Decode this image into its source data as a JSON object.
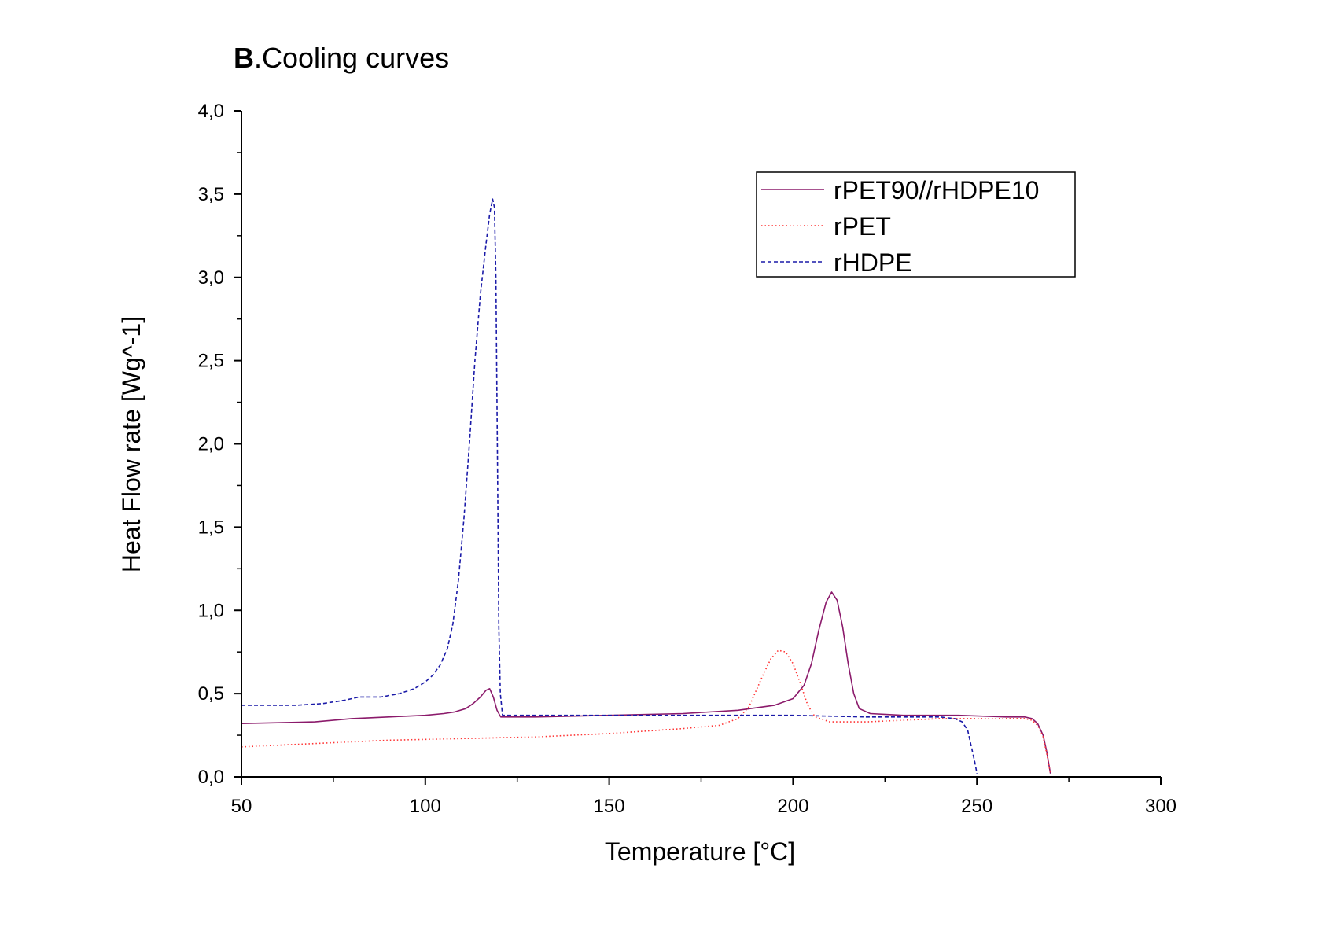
{
  "chart_data": {
    "type": "line",
    "title_prefix": "B",
    "title_rest": ".Cooling curves",
    "xlabel": "Temperature [°C]",
    "ylabel": "Heat Flow rate [Wg^-1]",
    "xlim": [
      50,
      300
    ],
    "ylim": [
      0,
      4
    ],
    "x_ticks": [
      50,
      100,
      150,
      200,
      250,
      300
    ],
    "x_tick_labels": [
      "50",
      "100",
      "150",
      "200",
      "250",
      "300"
    ],
    "y_ticks": [
      0,
      0.5,
      1,
      1.5,
      2,
      2.5,
      3,
      3.5,
      4
    ],
    "y_tick_labels": [
      "0,0",
      "0,5",
      "1,0",
      "1,5",
      "2,0",
      "2,5",
      "3,0",
      "3,5",
      "4,0"
    ],
    "legend_position": "top-right",
    "series": [
      {
        "name": "rPET90//rHDPE10",
        "color": "#8b1a6b",
        "dash": "solid",
        "points": [
          [
            50,
            0.32
          ],
          [
            70,
            0.33
          ],
          [
            80,
            0.35
          ],
          [
            90,
            0.36
          ],
          [
            100,
            0.37
          ],
          [
            105,
            0.38
          ],
          [
            108,
            0.39
          ],
          [
            111,
            0.41
          ],
          [
            113,
            0.44
          ],
          [
            115,
            0.48
          ],
          [
            116.5,
            0.52
          ],
          [
            117.5,
            0.53
          ],
          [
            118.5,
            0.48
          ],
          [
            119.5,
            0.4
          ],
          [
            120.5,
            0.36
          ],
          [
            130,
            0.36
          ],
          [
            150,
            0.37
          ],
          [
            170,
            0.38
          ],
          [
            185,
            0.4
          ],
          [
            195,
            0.43
          ],
          [
            200,
            0.47
          ],
          [
            203,
            0.55
          ],
          [
            205,
            0.68
          ],
          [
            207,
            0.88
          ],
          [
            209,
            1.05
          ],
          [
            210.5,
            1.11
          ],
          [
            212,
            1.06
          ],
          [
            213.5,
            0.9
          ],
          [
            215,
            0.68
          ],
          [
            216.5,
            0.5
          ],
          [
            218,
            0.41
          ],
          [
            221,
            0.38
          ],
          [
            230,
            0.37
          ],
          [
            245,
            0.37
          ],
          [
            258,
            0.36
          ],
          [
            263,
            0.36
          ],
          [
            265,
            0.35
          ],
          [
            266.5,
            0.32
          ],
          [
            268,
            0.25
          ],
          [
            269,
            0.15
          ],
          [
            270,
            0.02
          ]
        ]
      },
      {
        "name": "rPET",
        "color": "#ff3333",
        "dash": "dotted",
        "points": [
          [
            50,
            0.18
          ],
          [
            70,
            0.2
          ],
          [
            90,
            0.22
          ],
          [
            110,
            0.23
          ],
          [
            130,
            0.24
          ],
          [
            150,
            0.26
          ],
          [
            170,
            0.29
          ],
          [
            180,
            0.31
          ],
          [
            185,
            0.35
          ],
          [
            188,
            0.42
          ],
          [
            190,
            0.52
          ],
          [
            192,
            0.62
          ],
          [
            194,
            0.71
          ],
          [
            196,
            0.76
          ],
          [
            198,
            0.75
          ],
          [
            200,
            0.68
          ],
          [
            202,
            0.56
          ],
          [
            204,
            0.43
          ],
          [
            206,
            0.36
          ],
          [
            210,
            0.33
          ],
          [
            220,
            0.33
          ],
          [
            230,
            0.34
          ],
          [
            240,
            0.35
          ],
          [
            250,
            0.35
          ],
          [
            260,
            0.35
          ],
          [
            263,
            0.35
          ],
          [
            265,
            0.34
          ],
          [
            266.5,
            0.31
          ],
          [
            268,
            0.24
          ],
          [
            269,
            0.14
          ],
          [
            270,
            0.02
          ]
        ]
      },
      {
        "name": "rHDPE",
        "color": "#1a1aa8",
        "dash": "dashed",
        "points": [
          [
            50,
            0.43
          ],
          [
            65,
            0.43
          ],
          [
            72,
            0.44
          ],
          [
            78,
            0.46
          ],
          [
            82,
            0.48
          ],
          [
            88,
            0.48
          ],
          [
            93,
            0.5
          ],
          [
            97,
            0.53
          ],
          [
            100,
            0.57
          ],
          [
            102,
            0.61
          ],
          [
            104,
            0.67
          ],
          [
            106,
            0.77
          ],
          [
            107.5,
            0.92
          ],
          [
            109,
            1.18
          ],
          [
            110.5,
            1.55
          ],
          [
            112,
            2.0
          ],
          [
            113.5,
            2.5
          ],
          [
            115,
            2.9
          ],
          [
            116.5,
            3.2
          ],
          [
            117.5,
            3.38
          ],
          [
            118.3,
            3.47
          ],
          [
            118.8,
            3.42
          ],
          [
            119.2,
            3.0
          ],
          [
            119.6,
            2.0
          ],
          [
            120,
            0.9
          ],
          [
            120.4,
            0.5
          ],
          [
            121,
            0.37
          ],
          [
            140,
            0.37
          ],
          [
            160,
            0.37
          ],
          [
            180,
            0.37
          ],
          [
            200,
            0.37
          ],
          [
            220,
            0.36
          ],
          [
            240,
            0.36
          ],
          [
            244,
            0.35
          ],
          [
            246,
            0.33
          ],
          [
            247.5,
            0.28
          ],
          [
            248.5,
            0.18
          ],
          [
            249.5,
            0.08
          ],
          [
            250,
            0.02
          ]
        ]
      }
    ]
  }
}
